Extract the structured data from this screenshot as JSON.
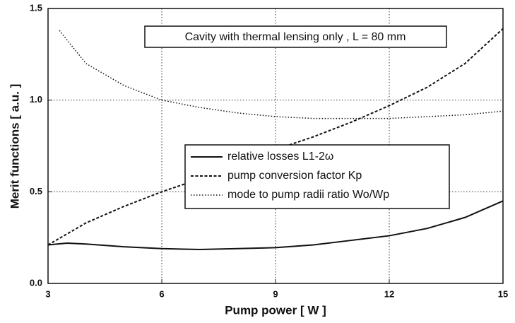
{
  "chart_data": {
    "type": "line",
    "xlabel": "Pump power [ W ]",
    "ylabel": "Merit functions [ a.u. ]",
    "annotation": "Cavity with thermal lensing only , L = 80 mm",
    "xlim": [
      3,
      15
    ],
    "xticks": [
      3,
      6,
      9,
      12,
      15
    ],
    "ylim": [
      0,
      1.5
    ],
    "yticks": [
      {
        "value": 0,
        "label": "0.0"
      },
      0.5,
      {
        "value": 1,
        "label": "1.0"
      },
      1.5
    ],
    "grid": true,
    "series": [
      {
        "name": "relative losses L1-2ω",
        "color": "#111111",
        "dash": "solid",
        "x": [
          3,
          3.5,
          4,
          5,
          6,
          7,
          8,
          9,
          10,
          11,
          12,
          13,
          14,
          15
        ],
        "values": [
          0.21,
          0.22,
          0.215,
          0.2,
          0.19,
          0.185,
          0.19,
          0.195,
          0.21,
          0.235,
          0.26,
          0.3,
          0.36,
          0.45
        ]
      },
      {
        "name": "pump conversion factor Kp",
        "color": "#111111",
        "dash": "dashed",
        "x": [
          3,
          4,
          5,
          6,
          7,
          8,
          9,
          10,
          11,
          12,
          13,
          14,
          15
        ],
        "values": [
          0.21,
          0.33,
          0.42,
          0.5,
          0.57,
          0.65,
          0.73,
          0.8,
          0.88,
          0.97,
          1.07,
          1.2,
          1.39
        ]
      },
      {
        "name": "mode to pump radii ratio Wo/Wp",
        "color": "#111111",
        "dash": "dotted",
        "x": [
          3.3,
          4,
          5,
          6,
          7,
          8,
          9,
          10,
          11,
          12,
          13,
          14,
          15
        ],
        "values": [
          1.38,
          1.2,
          1.08,
          1.0,
          0.96,
          0.93,
          0.91,
          0.9,
          0.9,
          0.9,
          0.91,
          0.92,
          0.94
        ]
      }
    ]
  }
}
